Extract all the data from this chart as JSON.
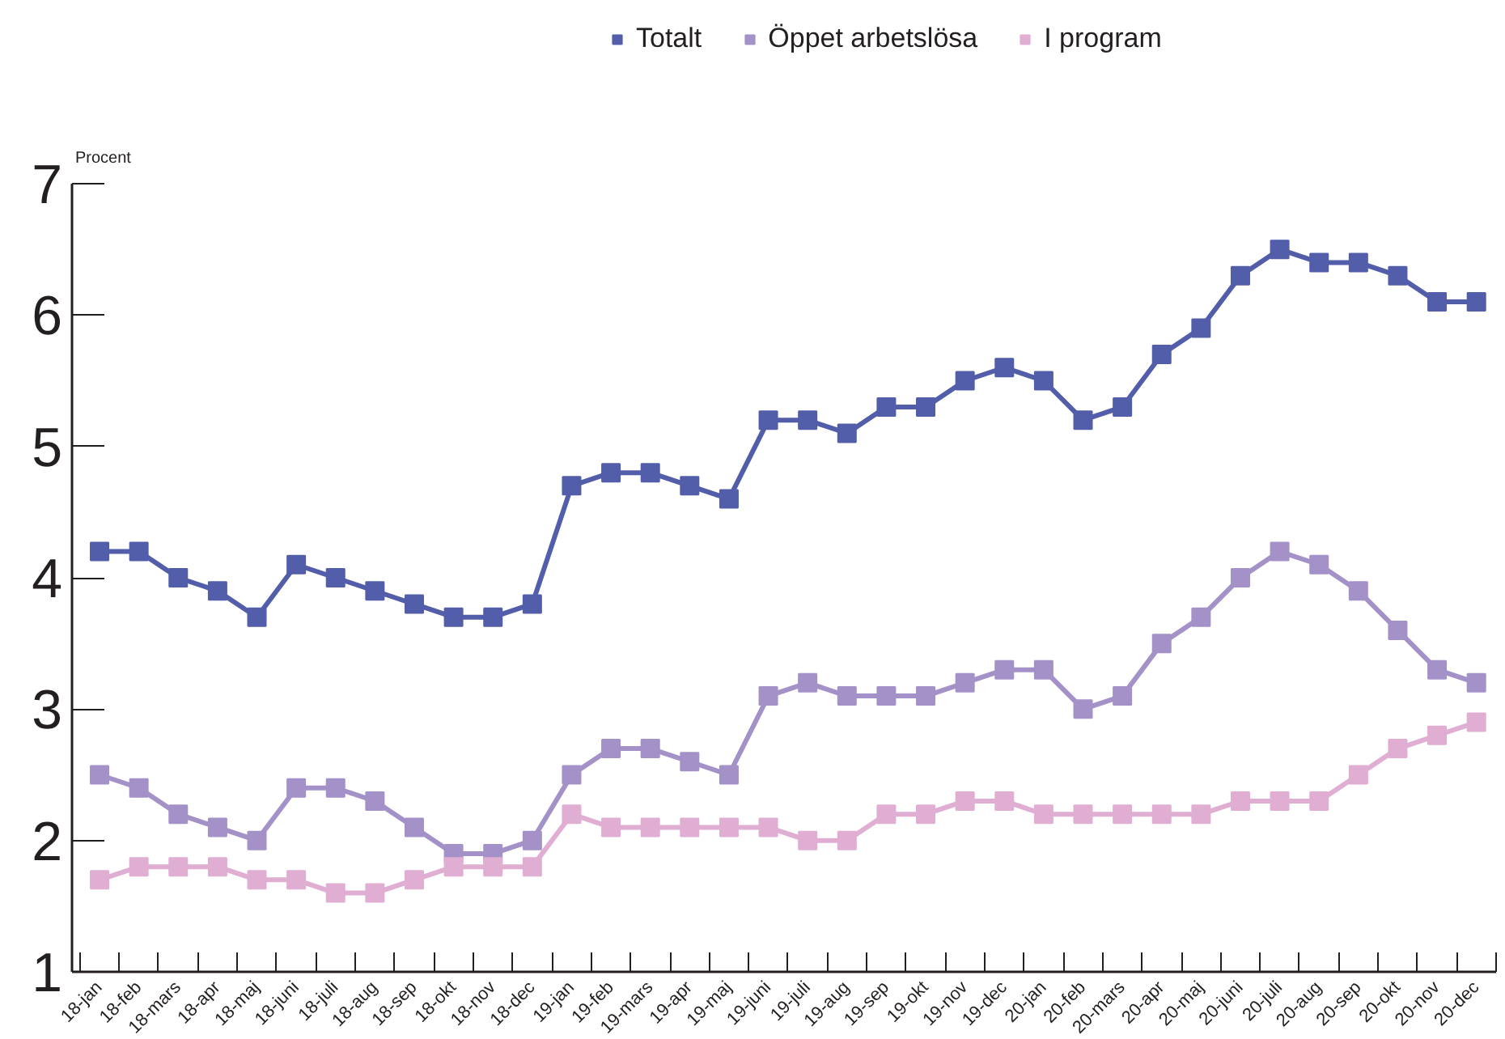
{
  "chart_data": {
    "type": "line",
    "ylabel": "Procent",
    "categories": [
      "18-jan",
      "18-feb",
      "18-mars",
      "18-apr",
      "18-maj",
      "18-juni",
      "18-juli",
      "18-aug",
      "18-sep",
      "18-okt",
      "18-nov",
      "18-dec",
      "19-jan",
      "19-feb",
      "19-mars",
      "19-apr",
      "19-maj",
      "19-juni",
      "19-juli",
      "19-aug",
      "19-sep",
      "19-okt",
      "19-nov",
      "19-dec",
      "20-jan",
      "20-feb",
      "20-mars",
      "20-apr",
      "20-maj",
      "20-juni",
      "20-juli",
      "20-aug",
      "20-sep",
      "20-okt",
      "20-nov",
      "20-dec"
    ],
    "series": [
      {
        "name": "Totalt",
        "color": "#525ea9",
        "values": [
          4.2,
          4.2,
          4.0,
          3.9,
          3.7,
          4.1,
          4.0,
          3.9,
          3.8,
          3.7,
          3.7,
          3.8,
          4.7,
          4.8,
          4.8,
          4.7,
          4.6,
          5.2,
          5.2,
          5.1,
          5.3,
          5.3,
          5.5,
          5.6,
          5.5,
          5.2,
          5.3,
          5.7,
          5.9,
          6.3,
          6.5,
          6.4,
          6.4,
          6.3,
          6.1,
          6.1
        ]
      },
      {
        "name": "Öppet arbetslösa",
        "color": "#a391c8",
        "values": [
          2.5,
          2.4,
          2.2,
          2.1,
          2.0,
          2.4,
          2.4,
          2.3,
          2.1,
          1.9,
          1.9,
          2.0,
          2.5,
          2.7,
          2.7,
          2.6,
          2.5,
          3.1,
          3.2,
          3.1,
          3.1,
          3.1,
          3.2,
          3.3,
          3.3,
          3.0,
          3.1,
          3.5,
          3.7,
          4.0,
          4.2,
          4.1,
          3.9,
          3.6,
          3.3,
          3.2
        ]
      },
      {
        "name": "I program",
        "color": "#e0aed3",
        "values": [
          1.7,
          1.8,
          1.8,
          1.8,
          1.7,
          1.7,
          1.6,
          1.6,
          1.7,
          1.8,
          1.8,
          1.8,
          2.2,
          2.1,
          2.1,
          2.1,
          2.1,
          2.1,
          2.0,
          2.0,
          2.2,
          2.2,
          2.3,
          2.3,
          2.2,
          2.2,
          2.2,
          2.2,
          2.2,
          2.3,
          2.3,
          2.3,
          2.5,
          2.7,
          2.8,
          2.9
        ]
      }
    ],
    "ylim": [
      1,
      7
    ],
    "yticks": [
      1,
      2,
      3,
      4,
      5,
      6,
      7
    ],
    "grid": false,
    "legend": "top",
    "marker": "square",
    "line_style": "solid"
  }
}
